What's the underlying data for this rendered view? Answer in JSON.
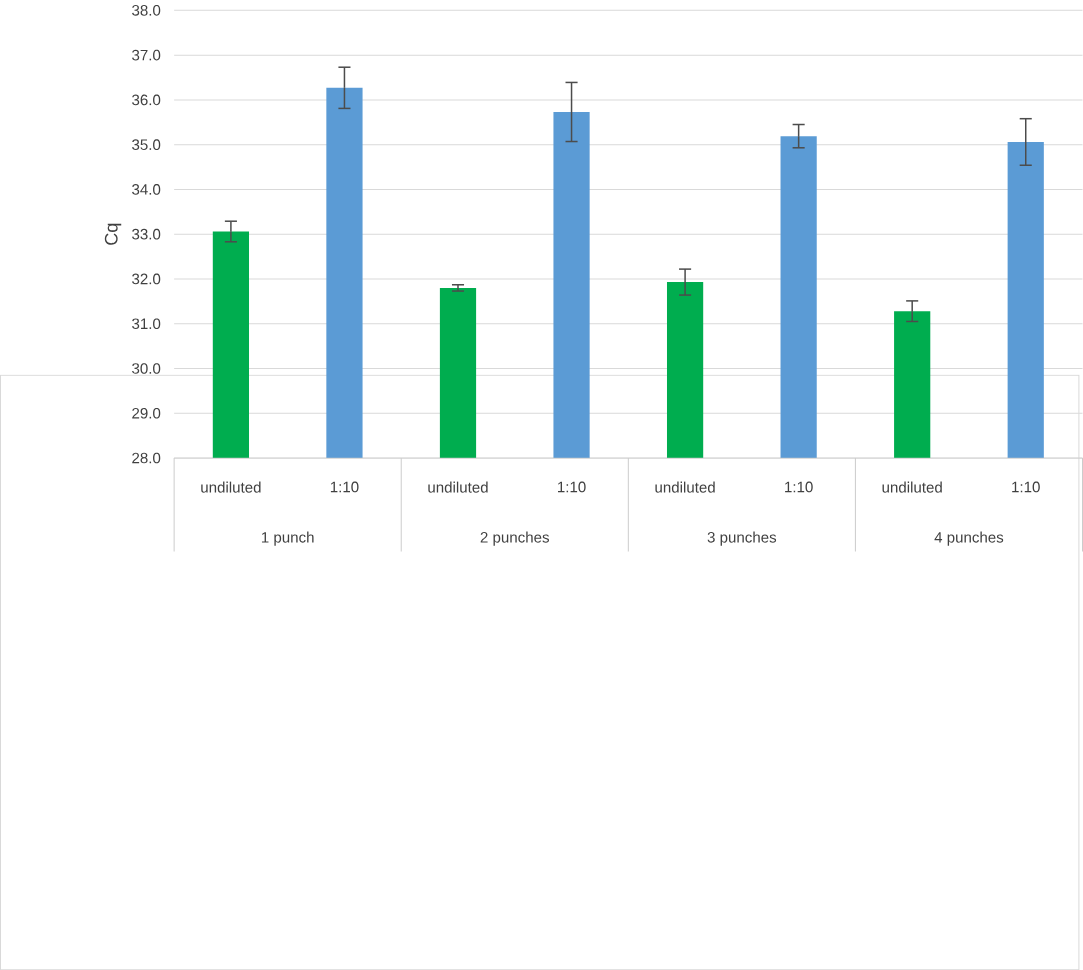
{
  "chart_data": {
    "type": "bar",
    "ylabel": "Cq",
    "categories": [
      "undiluted",
      "1:10",
      "undiluted",
      "1:10",
      "undiluted",
      "1:10",
      "undiluted",
      "1:10"
    ],
    "values": [
      33.06,
      36.27,
      31.8,
      35.73,
      31.93,
      35.19,
      31.28,
      35.06
    ],
    "errors": [
      0.23,
      0.46,
      0.07,
      0.66,
      0.29,
      0.26,
      0.23,
      0.52
    ],
    "colors": [
      "#00ad4f",
      "#5b9bd5",
      "#00ad4f",
      "#5b9bd5",
      "#00ad4f",
      "#5b9bd5",
      "#00ad4f",
      "#5b9bd5"
    ],
    "ylim": [
      28,
      38
    ],
    "yticks": [
      {
        "value": 28,
        "label": "28.0"
      },
      {
        "value": 29,
        "label": "29.0"
      },
      {
        "value": 30,
        "label": "30.0"
      },
      {
        "value": 31,
        "label": "31.0"
      },
      {
        "value": 32,
        "label": "32.0"
      },
      {
        "value": 33,
        "label": "33.0"
      },
      {
        "value": 34,
        "label": "34.0"
      },
      {
        "value": 35,
        "label": "35.0"
      },
      {
        "value": 36,
        "label": "36.0"
      },
      {
        "value": 37,
        "label": "37.0"
      },
      {
        "value": 38,
        "label": "38.0"
      }
    ],
    "grid": "y",
    "annotations": [
      "1 punch",
      "2 punches",
      "3 punches",
      "4 punches"
    ]
  }
}
